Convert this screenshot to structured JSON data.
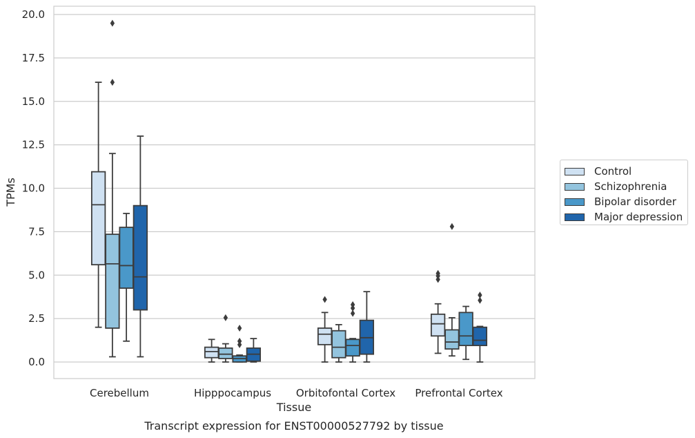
{
  "chart_data": {
    "type": "boxplot",
    "title": "Transcript expression for ENST00000527792 by tissue",
    "xlabel": "Tissue",
    "ylabel": "TPMs",
    "ylim": [
      -0.95,
      20.4
    ],
    "yticks": [
      "0.0",
      "2.5",
      "5.0",
      "7.5",
      "10.0",
      "12.5",
      "15.0",
      "17.5",
      "20.0"
    ],
    "categories": [
      "Cerebellum",
      "Hipppocampus",
      "Orbitofontal Cortex",
      "Prefrontal Cortex"
    ],
    "grid": "horizontal",
    "legend_position": "right",
    "series": [
      {
        "name": "Control",
        "color": "#cfe1f2",
        "boxes": [
          {
            "whislo": 2.0,
            "q1": 5.6,
            "med": 9.05,
            "q3": 10.95,
            "whishi": 16.1,
            "fliers": []
          },
          {
            "whislo": 0.0,
            "q1": 0.25,
            "med": 0.6,
            "q3": 0.85,
            "whishi": 1.3,
            "fliers": []
          },
          {
            "whislo": 0.0,
            "q1": 1.0,
            "med": 1.6,
            "q3": 1.95,
            "whishi": 2.85,
            "fliers": [
              3.6
            ]
          },
          {
            "whislo": 0.5,
            "q1": 1.5,
            "med": 2.2,
            "q3": 2.75,
            "whishi": 3.35,
            "fliers": [
              4.75,
              4.95,
              5.1
            ]
          }
        ]
      },
      {
        "name": "Schizophrenia",
        "color": "#93c4de",
        "boxes": [
          {
            "whislo": 0.3,
            "q1": 1.95,
            "med": 5.65,
            "q3": 7.35,
            "whishi": 12.0,
            "fliers": [
              16.1,
              19.5
            ]
          },
          {
            "whislo": 0.0,
            "q1": 0.2,
            "med": 0.45,
            "q3": 0.8,
            "whishi": 1.05,
            "fliers": [
              2.55
            ]
          },
          {
            "whislo": 0.0,
            "q1": 0.25,
            "med": 0.85,
            "q3": 1.8,
            "whishi": 2.15,
            "fliers": []
          },
          {
            "whislo": 0.35,
            "q1": 0.75,
            "med": 1.15,
            "q3": 1.85,
            "whishi": 2.55,
            "fliers": [
              7.8
            ]
          }
        ]
      },
      {
        "name": "Bipolar disorder",
        "color": "#4a98c9",
        "boxes": [
          {
            "whislo": 1.2,
            "q1": 4.25,
            "med": 5.55,
            "q3": 7.75,
            "whishi": 8.55,
            "fliers": []
          },
          {
            "whislo": 0.0,
            "q1": 0.0,
            "med": 0.2,
            "q3": 0.35,
            "whishi": 0.4,
            "fliers": [
              1.0,
              1.2,
              1.95
            ]
          },
          {
            "whislo": 0.0,
            "q1": 0.35,
            "med": 0.95,
            "q3": 1.3,
            "whishi": 1.35,
            "fliers": [
              2.8,
              3.1,
              3.3
            ]
          },
          {
            "whislo": 0.15,
            "q1": 0.95,
            "med": 1.5,
            "q3": 2.85,
            "whishi": 3.2,
            "fliers": []
          }
        ]
      },
      {
        "name": "Major depression",
        "color": "#2065ab",
        "boxes": [
          {
            "whislo": 0.3,
            "q1": 3.0,
            "med": 4.9,
            "q3": 9.0,
            "whishi": 13.0,
            "fliers": []
          },
          {
            "whislo": 0.0,
            "q1": 0.05,
            "med": 0.45,
            "q3": 0.8,
            "whishi": 1.35,
            "fliers": []
          },
          {
            "whislo": 0.0,
            "q1": 0.45,
            "med": 1.4,
            "q3": 2.4,
            "whishi": 4.05,
            "fliers": []
          },
          {
            "whislo": 0.0,
            "q1": 0.95,
            "med": 1.25,
            "q3": 2.0,
            "whishi": 2.05,
            "fliers": [
              3.55,
              3.85
            ]
          }
        ]
      }
    ]
  }
}
